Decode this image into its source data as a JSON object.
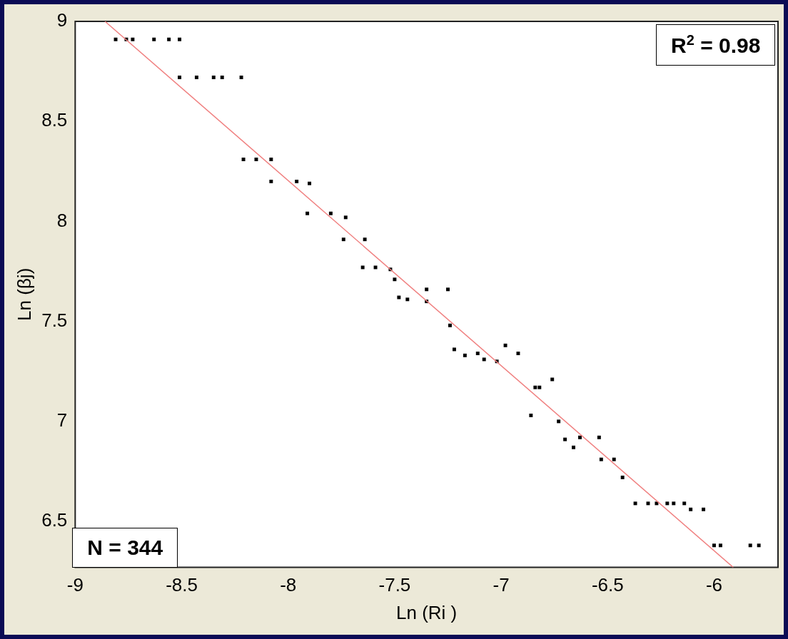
{
  "chart_data": {
    "type": "scatter",
    "xlabel": "Ln (Ri )",
    "ylabel": "Ln (βj)",
    "xlim": [
      -9,
      -5.7
    ],
    "xticks": [
      -9,
      -8.5,
      -8,
      -7.5,
      -7,
      -6.5,
      -6
    ],
    "ylim": [
      6.27,
      9
    ],
    "yticks": [
      6.5,
      7,
      7.5,
      8,
      8.5,
      9
    ],
    "grid": false,
    "legend": false,
    "marker": "square",
    "annotations": [
      "R$^{2}$ = 0.98",
      "N = 344"
    ],
    "series": [
      {
        "color": "#000000",
        "x": [
          -8.81,
          -8.76,
          -8.73,
          -8.63,
          -8.56,
          -8.51,
          -8.51,
          -8.43,
          -8.35,
          -8.31,
          -8.22,
          -8.21,
          -8.15,
          -8.08,
          -8.08,
          -7.96,
          -7.9,
          -7.91,
          -7.8,
          -7.73,
          -7.74,
          -7.64,
          -7.65,
          -7.59,
          -7.52,
          -7.5,
          -7.35,
          -7.25,
          -7.48,
          -7.44,
          -7.35,
          -7.24,
          -7.22,
          -7.17,
          -7.11,
          -7.08,
          -7.02,
          -6.98,
          -6.92,
          -6.76,
          -6.82,
          -6.84,
          -6.86,
          -6.73,
          -6.7,
          -6.66,
          -6.63,
          -6.54,
          -6.53,
          -6.47,
          -6.43,
          -6.37,
          -6.31,
          -6.27,
          -6.22,
          -6.19,
          -6.14,
          -6.11,
          -6.05,
          -6,
          -5.97,
          -5.83,
          -5.79
        ],
        "values": [
          8.91,
          8.91,
          8.91,
          8.91,
          8.91,
          8.91,
          8.72,
          8.72,
          8.72,
          8.72,
          8.72,
          8.31,
          8.31,
          8.31,
          8.2,
          8.2,
          8.19,
          8.04,
          8.04,
          8.02,
          7.91,
          7.91,
          7.77,
          7.77,
          7.76,
          7.71,
          7.66,
          7.66,
          7.62,
          7.61,
          7.6,
          7.48,
          7.36,
          7.33,
          7.34,
          7.31,
          7.3,
          7.38,
          7.34,
          7.21,
          7.17,
          7.17,
          7.03,
          7,
          6.91,
          6.87,
          6.92,
          6.92,
          6.81,
          6.81,
          6.72,
          6.59,
          6.59,
          6.59,
          6.59,
          6.59,
          6.59,
          6.56,
          6.56,
          6.38,
          6.38,
          6.38,
          6.38
        ]
      },
      {
        "type": "line",
        "color": "#f08080",
        "marker": "none",
        "x": [
          -8.86,
          -5.91
        ],
        "values": [
          9,
          6.27
        ]
      }
    ]
  }
}
